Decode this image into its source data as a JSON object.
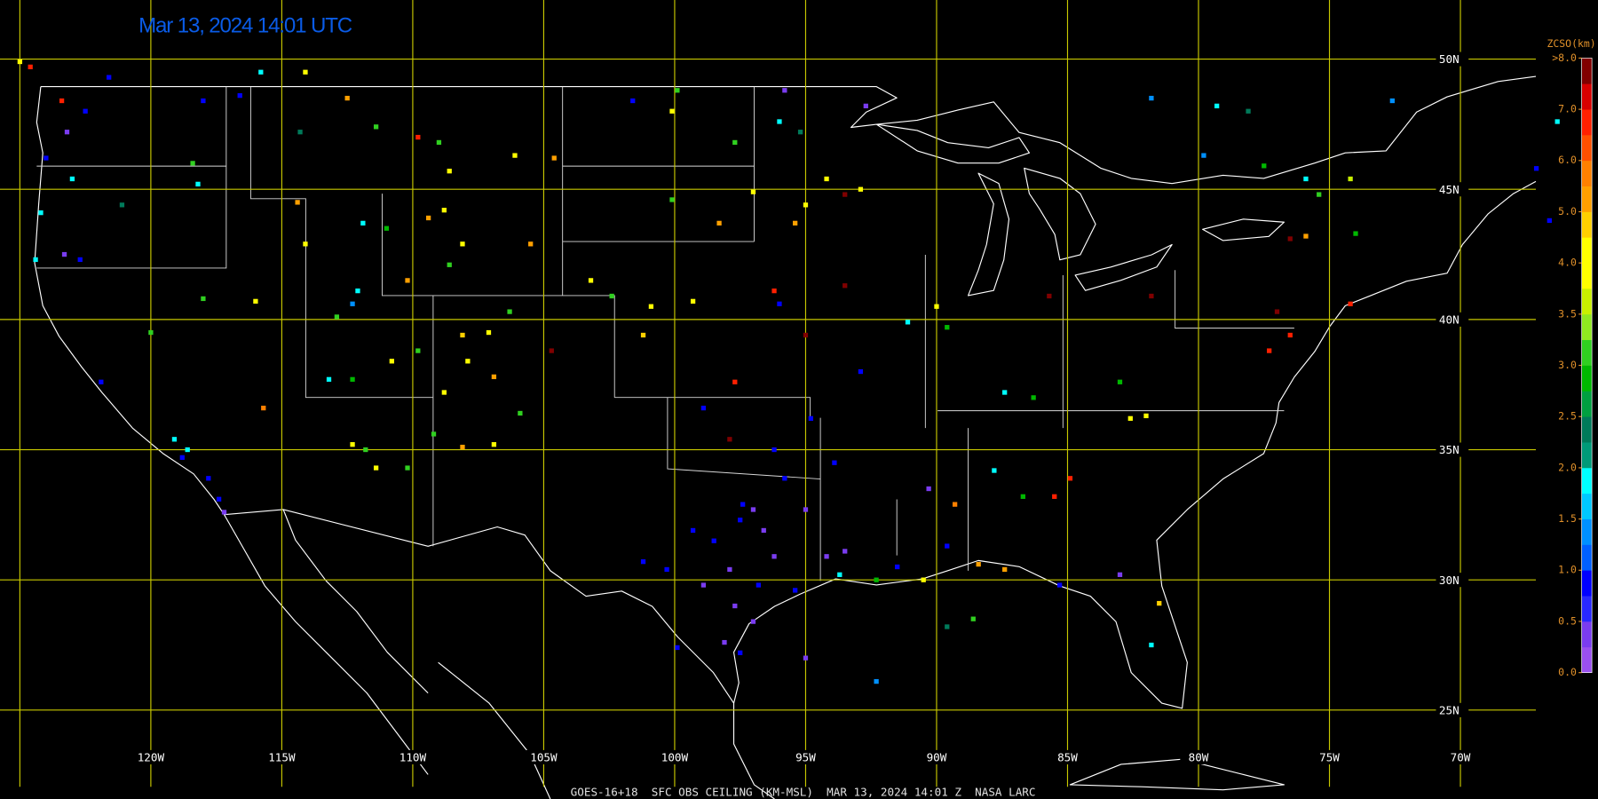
{
  "map": {
    "timestamp": "Mar 13, 2024 14:01 UTC",
    "footer": "GOES-16+18  SFC OBS CEILING (KM-MSL)  MAR 13, 2024 14:01 Z  NASA LARC",
    "grid_color": "#c8c800",
    "lat_lines": [
      {
        "value": 50,
        "label": "50N"
      },
      {
        "value": 45,
        "label": "45N"
      },
      {
        "value": 40,
        "label": "40N"
      },
      {
        "value": 35,
        "label": "35N"
      },
      {
        "value": 30,
        "label": "30N"
      },
      {
        "value": 25,
        "label": "25N"
      }
    ],
    "lon_lines": [
      {
        "value": -125,
        "label": null
      },
      {
        "value": -120,
        "label": "120W"
      },
      {
        "value": -115,
        "label": "115W"
      },
      {
        "value": -110,
        "label": "110W"
      },
      {
        "value": -105,
        "label": "105W"
      },
      {
        "value": -100,
        "label": "100W"
      },
      {
        "value": -95,
        "label": "95W"
      },
      {
        "value": -90,
        "label": "90W"
      },
      {
        "value": -85,
        "label": "85W"
      },
      {
        "value": -80,
        "label": "80W"
      },
      {
        "value": -75,
        "label": "75W"
      },
      {
        "value": -70,
        "label": "70W"
      }
    ],
    "colorbar": {
      "title": "ZCSO(km)",
      "ticks": [
        {
          "value": 0,
          "label": "0.0"
        },
        {
          "value": 0.5,
          "label": "0.5"
        },
        {
          "value": 1,
          "label": "1.0"
        },
        {
          "value": 1.5,
          "label": "1.5"
        },
        {
          "value": 2,
          "label": "2.0"
        },
        {
          "value": 2.5,
          "label": "2.5"
        },
        {
          "value": 3,
          "label": "3.0"
        },
        {
          "value": 3.5,
          "label": "3.5"
        },
        {
          "value": 4,
          "label": "4.0"
        },
        {
          "value": 5,
          "label": "5.0"
        },
        {
          "value": 6,
          "label": "6.0"
        },
        {
          "value": 7,
          "label": "7.0"
        },
        {
          "value": 8,
          "label": ">8.0"
        }
      ],
      "colors": [
        "#9a50f0",
        "#7a3cf0",
        "#2828ff",
        "#0000ff",
        "#0060ff",
        "#0090ff",
        "#00c8ff",
        "#00ffff",
        "#009a78",
        "#007a5a",
        "#00a040",
        "#00b800",
        "#30d020",
        "#90e820",
        "#c8f000",
        "#ffff00",
        "#ffff00",
        "#ffd000",
        "#ffa000",
        "#ff8000",
        "#ff5000",
        "#ff2000",
        "#d80000",
        "#800000"
      ]
    },
    "stations": [
      [
        -97.4,
        32.9,
        0.8
      ],
      [
        -97.0,
        32.7,
        0.3
      ],
      [
        -97.5,
        32.3,
        0.8
      ],
      [
        -96.6,
        31.9,
        0.3
      ],
      [
        -98.5,
        31.5,
        0.8
      ],
      [
        -96.2,
        30.9,
        0.3
      ],
      [
        -97.9,
        30.4,
        0.3
      ],
      [
        -96.8,
        29.8,
        0.8
      ],
      [
        -95.4,
        29.6,
        0.8
      ],
      [
        -98.9,
        29.8,
        0.3
      ],
      [
        -97.7,
        29.0,
        0.3
      ],
      [
        -97.0,
        28.4,
        0.3
      ],
      [
        -98.1,
        27.6,
        0.3
      ],
      [
        -99.9,
        27.4,
        0.8
      ],
      [
        -97.5,
        27.2,
        0.8
      ],
      [
        -101.2,
        30.7,
        0.8
      ],
      [
        -100.3,
        30.4,
        0.8
      ],
      [
        -99.3,
        31.9,
        0.8
      ],
      [
        -95.0,
        32.7,
        0.3
      ],
      [
        -94.2,
        30.9,
        0.3
      ],
      [
        -93.5,
        31.1,
        0.3
      ],
      [
        -95.8,
        33.9,
        0.8
      ],
      [
        -96.2,
        35.0,
        0.8
      ],
      [
        -93.9,
        34.5,
        0.8
      ],
      [
        -94.8,
        36.2,
        0.8
      ],
      [
        -98.9,
        36.6,
        0.8
      ],
      [
        -95.0,
        27.0,
        0.3
      ],
      [
        -92.3,
        26.1,
        1.3
      ],
      [
        -93.7,
        30.2,
        1.8
      ],
      [
        -92.3,
        30.0,
        2.8
      ],
      [
        -91.5,
        30.5,
        0.8
      ],
      [
        -90.5,
        30.0,
        4.2
      ],
      [
        -89.6,
        31.3,
        0.8
      ],
      [
        -88.4,
        30.6,
        5.3
      ],
      [
        -87.4,
        30.4,
        5.3
      ],
      [
        -85.3,
        29.8,
        0.8
      ],
      [
        -83.0,
        30.2,
        0.3
      ],
      [
        -81.5,
        29.1,
        4.7
      ],
      [
        -81.8,
        27.5,
        1.8
      ],
      [
        -88.6,
        28.5,
        3.2
      ],
      [
        -89.6,
        28.2,
        2.3
      ],
      [
        -89.3,
        32.9,
        5.8
      ],
      [
        -90.3,
        33.5,
        0.3
      ],
      [
        -87.8,
        34.2,
        1.8
      ],
      [
        -86.7,
        33.2,
        2.8
      ],
      [
        -85.5,
        33.2,
        6.8
      ],
      [
        -84.9,
        33.9,
        6.8
      ],
      [
        -82.6,
        36.2,
        4.2
      ],
      [
        -82.0,
        36.3,
        4.2
      ],
      [
        -83.0,
        37.6,
        2.8
      ],
      [
        -87.4,
        37.2,
        1.8
      ],
      [
        -86.3,
        37.0,
        2.8
      ],
      [
        -76.5,
        39.4,
        6.8
      ],
      [
        -77.3,
        38.8,
        6.8
      ],
      [
        -74.2,
        40.6,
        6.8
      ],
      [
        -85.7,
        40.9,
        7.8
      ],
      [
        -81.8,
        40.9,
        7.8
      ],
      [
        -77.0,
        40.3,
        7.8
      ],
      [
        -76.5,
        43.1,
        7.8
      ],
      [
        -75.9,
        43.2,
        5.3
      ],
      [
        -74.0,
        43.3,
        2.8
      ],
      [
        -75.4,
        44.8,
        3.2
      ],
      [
        -74.2,
        45.4,
        3.7
      ],
      [
        -75.9,
        45.4,
        1.8
      ],
      [
        -77.5,
        45.9,
        2.8
      ],
      [
        -79.8,
        46.3,
        1.3
      ],
      [
        -79.3,
        48.2,
        1.8
      ],
      [
        -78.1,
        48.0,
        2.3
      ],
      [
        -81.8,
        48.5,
        1.3
      ],
      [
        -72.6,
        48.4,
        1.3
      ],
      [
        -67.1,
        45.8,
        0.8
      ],
      [
        -66.6,
        43.8,
        0.8
      ],
      [
        -66.3,
        47.6,
        1.8
      ],
      [
        -93.5,
        41.3,
        7.8
      ],
      [
        -93.5,
        44.8,
        7.8
      ],
      [
        -95.0,
        39.4,
        7.8
      ],
      [
        -96.2,
        41.1,
        6.8
      ],
      [
        -96.0,
        40.6,
        0.8
      ],
      [
        -91.1,
        39.9,
        1.8
      ],
      [
        -89.6,
        39.7,
        2.8
      ],
      [
        -90.0,
        40.5,
        4.2
      ],
      [
        -92.9,
        38.0,
        0.8
      ],
      [
        -97.7,
        37.6,
        6.8
      ],
      [
        -97.9,
        35.4,
        7.8
      ],
      [
        -104.6,
        46.2,
        5.3
      ],
      [
        -103.2,
        41.5,
        4.2
      ],
      [
        -100.9,
        40.5,
        4.2
      ],
      [
        -99.3,
        40.7,
        4.2
      ],
      [
        -102.4,
        40.9,
        3.2
      ],
      [
        -101.2,
        39.4,
        4.7
      ],
      [
        -100.1,
        44.6,
        3.2
      ],
      [
        -98.3,
        43.7,
        5.3
      ],
      [
        -97.0,
        44.9,
        4.2
      ],
      [
        -95.0,
        44.4,
        4.2
      ],
      [
        -94.2,
        45.4,
        4.2
      ],
      [
        -95.4,
        43.7,
        5.3
      ],
      [
        -92.9,
        45.0,
        4.2
      ],
      [
        -100.1,
        48.0,
        4.2
      ],
      [
        -97.7,
        46.8,
        3.2
      ],
      [
        -96.0,
        47.6,
        1.8
      ],
      [
        -95.2,
        47.2,
        2.3
      ],
      [
        -99.9,
        48.8,
        3.2
      ],
      [
        -101.6,
        48.4,
        0.8
      ],
      [
        -95.8,
        48.8,
        0.3
      ],
      [
        -92.7,
        48.2,
        0.3
      ],
      [
        -104.7,
        38.8,
        7.8
      ],
      [
        -106.3,
        40.3,
        3.2
      ],
      [
        -108.1,
        39.4,
        4.7
      ],
      [
        -107.1,
        39.5,
        4.2
      ],
      [
        -107.9,
        38.4,
        4.2
      ],
      [
        -106.9,
        37.8,
        5.3
      ],
      [
        -108.8,
        37.2,
        4.2
      ],
      [
        -109.8,
        38.8,
        3.2
      ],
      [
        -110.8,
        38.4,
        4.2
      ],
      [
        -112.3,
        37.7,
        2.8
      ],
      [
        -113.2,
        37.7,
        1.8
      ],
      [
        -112.9,
        40.1,
        3.2
      ],
      [
        -112.1,
        41.1,
        1.8
      ],
      [
        -112.3,
        40.6,
        1.3
      ],
      [
        -111.0,
        43.5,
        2.8
      ],
      [
        -111.9,
        43.7,
        1.8
      ],
      [
        -114.1,
        42.9,
        4.2
      ],
      [
        -114.4,
        44.5,
        5.3
      ],
      [
        -116.0,
        40.7,
        4.2
      ],
      [
        -118.0,
        40.8,
        3.2
      ],
      [
        -120.0,
        39.5,
        3.2
      ],
      [
        -121.9,
        37.6,
        0.8
      ],
      [
        -115.7,
        36.6,
        5.8
      ],
      [
        -111.8,
        35.0,
        3.2
      ],
      [
        -112.3,
        35.2,
        4.2
      ],
      [
        -109.2,
        35.6,
        3.2
      ],
      [
        -108.1,
        35.1,
        5.3
      ],
      [
        -106.9,
        35.2,
        4.2
      ],
      [
        -105.9,
        36.4,
        3.2
      ],
      [
        -110.2,
        34.3,
        3.2
      ],
      [
        -111.4,
        34.3,
        4.2
      ],
      [
        -114.1,
        49.5,
        4.2
      ],
      [
        -115.8,
        49.5,
        1.8
      ],
      [
        -116.6,
        48.6,
        0.8
      ],
      [
        -118.0,
        48.4,
        0.8
      ],
      [
        -118.4,
        46.0,
        3.2
      ],
      [
        -118.2,
        45.2,
        1.8
      ],
      [
        -114.3,
        47.2,
        2.3
      ],
      [
        -112.5,
        48.5,
        5.3
      ],
      [
        -111.4,
        47.4,
        3.2
      ],
      [
        -109.8,
        47.0,
        6.8
      ],
      [
        -109.0,
        46.8,
        3.2
      ],
      [
        -108.6,
        45.7,
        4.2
      ],
      [
        -106.1,
        46.3,
        4.2
      ],
      [
        -108.8,
        44.2,
        4.2
      ],
      [
        -109.4,
        43.9,
        5.3
      ],
      [
        -108.1,
        42.9,
        4.2
      ],
      [
        -110.2,
        41.5,
        5.3
      ],
      [
        -108.6,
        42.1,
        3.2
      ],
      [
        -105.5,
        42.9,
        5.3
      ],
      [
        -124.0,
        46.2,
        0.8
      ],
      [
        -124.2,
        44.1,
        1.8
      ],
      [
        -124.4,
        42.3,
        1.8
      ],
      [
        -123.3,
        42.5,
        0.3
      ],
      [
        -122.7,
        42.3,
        0.8
      ],
      [
        -123.0,
        45.4,
        1.8
      ],
      [
        -122.5,
        48.0,
        0.8
      ],
      [
        -123.2,
        47.2,
        0.3
      ],
      [
        -125.0,
        49.9,
        4.2
      ],
      [
        -124.6,
        49.7,
        6.8
      ],
      [
        -123.4,
        48.4,
        6.8
      ],
      [
        -121.6,
        49.3,
        0.8
      ],
      [
        -121.1,
        44.4,
        2.3
      ],
      [
        -119.1,
        35.4,
        1.8
      ],
      [
        -118.6,
        35.0,
        1.8
      ],
      [
        -118.8,
        34.7,
        0.8
      ],
      [
        -117.8,
        33.9,
        0.8
      ],
      [
        -117.4,
        33.1,
        0.8
      ],
      [
        -117.2,
        32.6,
        0.3
      ]
    ]
  }
}
